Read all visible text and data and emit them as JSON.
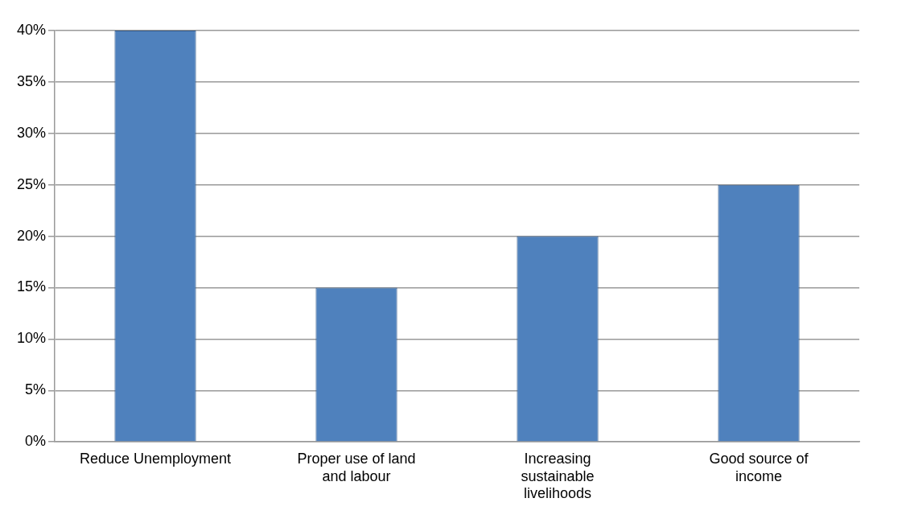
{
  "chart_data": {
    "type": "bar",
    "categories": [
      "Reduce Unemployment",
      "Proper use of land and labour",
      "Increasing sustainable livelihoods",
      "Good source of income"
    ],
    "values": [
      40,
      15,
      20,
      25
    ],
    "color": "#4f81bd",
    "ylim": [
      0,
      40
    ],
    "yticks": [
      {
        "value": 0,
        "label": "0%"
      },
      {
        "value": 5,
        "label": "5%"
      },
      {
        "value": 10,
        "label": "10%"
      },
      {
        "value": 15,
        "label": "15%"
      },
      {
        "value": 20,
        "label": "20%"
      },
      {
        "value": 25,
        "label": "25%"
      },
      {
        "value": 30,
        "label": "30%"
      },
      {
        "value": 35,
        "label": "35%"
      },
      {
        "value": 40,
        "label": "40%"
      }
    ],
    "grid": "y",
    "legend": false
  }
}
